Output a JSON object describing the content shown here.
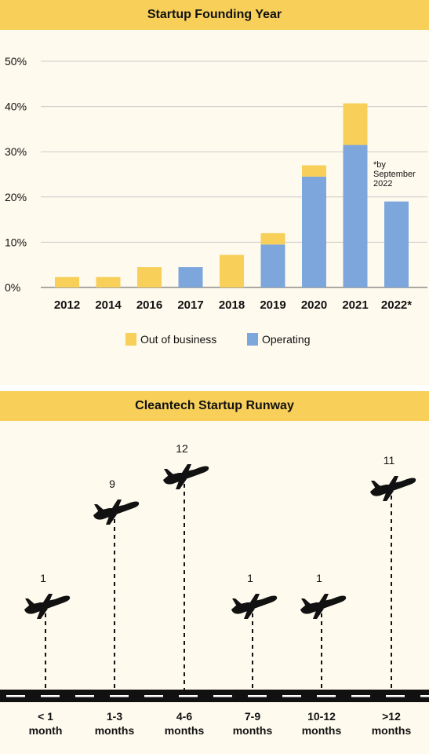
{
  "chart_data": [
    {
      "type": "bar",
      "stacked": true,
      "title": "Startup Founding Year",
      "categories": [
        "2012",
        "2014",
        "2016",
        "2017",
        "2018",
        "2019",
        "2020",
        "2021",
        "2022*"
      ],
      "series": [
        {
          "name": "Operating",
          "color": "#7ca6dc",
          "values": [
            0,
            0,
            0,
            4.5,
            0,
            9.5,
            24.5,
            31.5,
            19
          ]
        },
        {
          "name": "Out of business",
          "color": "#f7cf59",
          "values": [
            2.3,
            2.3,
            4.5,
            0,
            7.2,
            2.5,
            2.5,
            9.2,
            0
          ]
        }
      ],
      "ylim": [
        0,
        50
      ],
      "yticks": [
        "0%",
        "10%",
        "20%",
        "30%",
        "40%",
        "50%"
      ],
      "legend": [
        "Out of business",
        "Operating"
      ],
      "legend_placement": "bottom",
      "annotation": [
        "*by",
        "September",
        "2022"
      ],
      "grid": true
    },
    {
      "type": "pictograph",
      "title": "Cleantech Startup Runway",
      "categories": [
        [
          "< 1",
          "month"
        ],
        [
          "1-3",
          "months"
        ],
        [
          "4-6",
          "months"
        ],
        [
          "7-9",
          "months"
        ],
        [
          "10-12",
          "months"
        ],
        [
          ">12",
          "months"
        ]
      ],
      "values": [
        1,
        9,
        12,
        1,
        1,
        11
      ],
      "value_labels": [
        "1",
        "9",
        "12",
        "1",
        "1",
        "11"
      ],
      "icon": "airplane-icon"
    }
  ]
}
